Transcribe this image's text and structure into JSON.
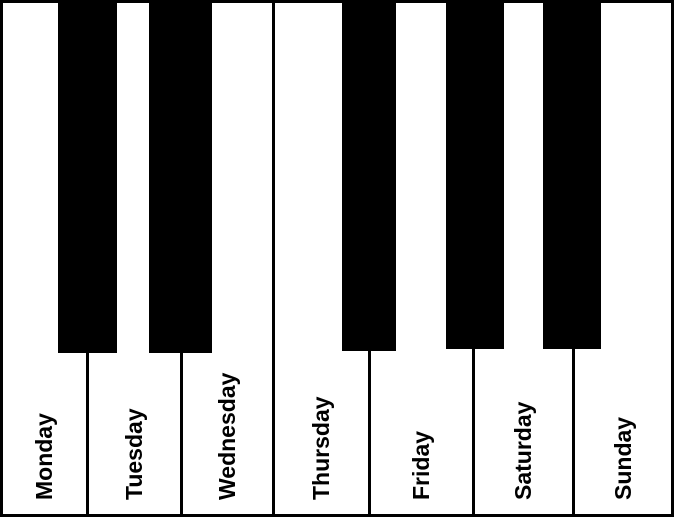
{
  "keyboard": {
    "white_keys": [
      {
        "label": "Monday"
      },
      {
        "label": "Tuesday"
      },
      {
        "label": "Wednesday"
      },
      {
        "label": "Thursday"
      },
      {
        "label": "Friday"
      },
      {
        "label": "Saturday"
      },
      {
        "label": "Sunday"
      }
    ],
    "black_key_count": 5,
    "colors": {
      "white_key": "#ffffff",
      "black_key": "#000000",
      "outline": "#000000"
    }
  }
}
